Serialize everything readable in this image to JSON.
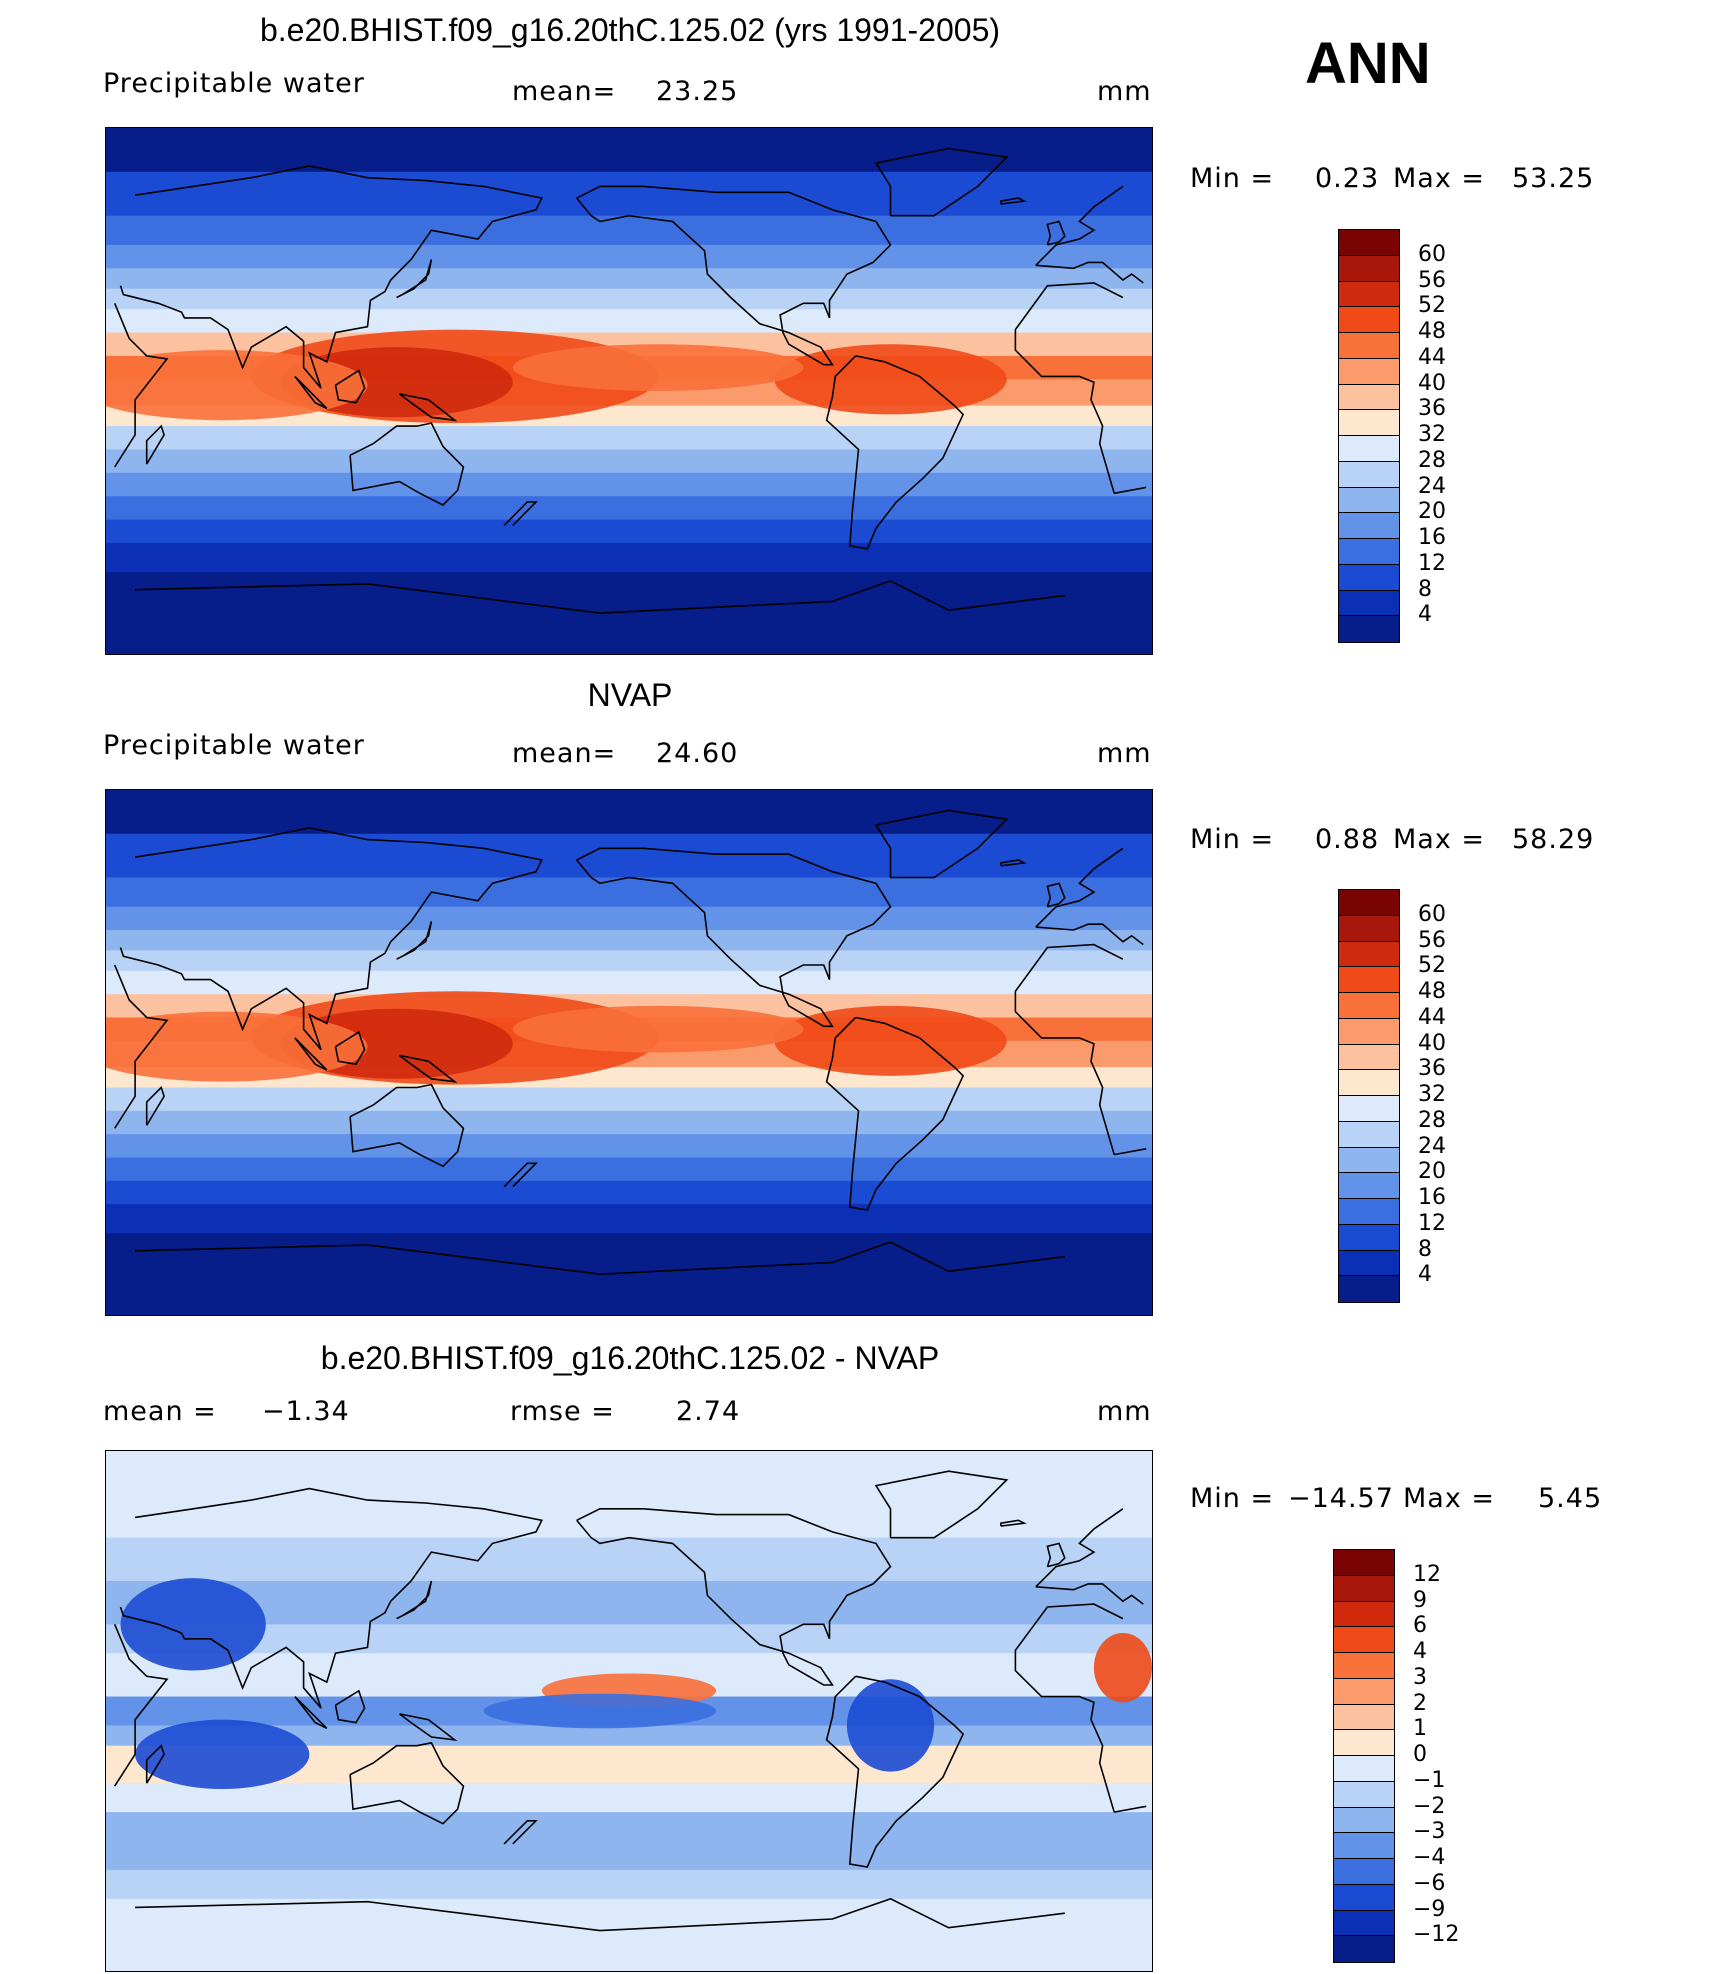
{
  "annotation": "ANN",
  "panels": [
    {
      "title": "b.e20.BHIST.f09_g16.20thC.125.02 (yrs 1991-2005)",
      "left_label": "Precipitable  water",
      "stat1_label": "mean=",
      "stat1_value": "23.25",
      "stat2_label": "",
      "stat2_value": "",
      "units": "mm",
      "minmax": {
        "min_label": "Min  =",
        "min": "0.23",
        "max_label": "Max  =",
        "max": "53.25"
      },
      "colorbar_labels": [
        "60",
        "56",
        "52",
        "48",
        "44",
        "40",
        "36",
        "32",
        "28",
        "24",
        "20",
        "16",
        "12",
        "8",
        "4"
      ],
      "colors": [
        "#7a0403",
        "#a8170b",
        "#cf2a0d",
        "#ef4a18",
        "#f8703a",
        "#fb9a6a",
        "#fcc2a0",
        "#fde7cf",
        "#dceafb",
        "#b9d3f6",
        "#8fb5ef",
        "#6293e8",
        "#3b6fe0",
        "#1c4bd3",
        "#0b2fb5",
        "#061d8a"
      ]
    },
    {
      "title": "NVAP",
      "left_label": "Precipitable  water",
      "stat1_label": "mean=",
      "stat1_value": "24.60",
      "stat2_label": "",
      "stat2_value": "",
      "units": "mm",
      "minmax": {
        "min_label": "Min  =",
        "min": "0.88",
        "max_label": "Max  =",
        "max": "58.29"
      },
      "colorbar_labels": [
        "60",
        "56",
        "52",
        "48",
        "44",
        "40",
        "36",
        "32",
        "28",
        "24",
        "20",
        "16",
        "12",
        "8",
        "4"
      ],
      "colors": [
        "#7a0403",
        "#a8170b",
        "#cf2a0d",
        "#ef4a18",
        "#f8703a",
        "#fb9a6a",
        "#fcc2a0",
        "#fde7cf",
        "#dceafb",
        "#b9d3f6",
        "#8fb5ef",
        "#6293e8",
        "#3b6fe0",
        "#1c4bd3",
        "#0b2fb5",
        "#061d8a"
      ]
    },
    {
      "title": "b.e20.BHIST.f09_g16.20thC.125.02 - NVAP",
      "left_label": "mean  =",
      "stat1_label": "−1.34",
      "stat1_value": "",
      "stat2_label": "rmse  =",
      "stat2_value": "2.74",
      "units": "mm",
      "minmax": {
        "min_label": "Min  =",
        "min": "−14.57",
        "max_label": "Max  =",
        "max": "5.45"
      },
      "colorbar_labels": [
        "12",
        "9",
        "6",
        "4",
        "3",
        "2",
        "1",
        "0",
        "−1",
        "−2",
        "−3",
        "−4",
        "−6",
        "−9",
        "−12"
      ],
      "colors": [
        "#7a0403",
        "#a8170b",
        "#cf2a0d",
        "#ef4a18",
        "#f8703a",
        "#fb9a6a",
        "#fcc2a0",
        "#fde7cf",
        "#dceafb",
        "#b9d3f6",
        "#8fb5ef",
        "#6293e8",
        "#3b6fe0",
        "#1c4bd3",
        "#0b2fb5",
        "#061d8a"
      ]
    }
  ],
  "chart_data": [
    {
      "type": "heatmap",
      "title": "b.e20.BHIST.f09_g16.20thC.125.02 (yrs 1991-2005)",
      "variable": "Precipitable water",
      "units": "mm",
      "mean": 23.25,
      "min": 0.23,
      "max": 53.25,
      "levels": [
        4,
        8,
        12,
        16,
        20,
        24,
        28,
        32,
        36,
        40,
        44,
        48,
        52,
        56,
        60
      ]
    },
    {
      "type": "heatmap",
      "title": "NVAP",
      "variable": "Precipitable water",
      "units": "mm",
      "mean": 24.6,
      "min": 0.88,
      "max": 58.29,
      "levels": [
        4,
        8,
        12,
        16,
        20,
        24,
        28,
        32,
        36,
        40,
        44,
        48,
        52,
        56,
        60
      ]
    },
    {
      "type": "heatmap",
      "title": "b.e20.BHIST.f09_g16.20thC.125.02 - NVAP",
      "units": "mm",
      "mean": -1.34,
      "rmse": 2.74,
      "min": -14.57,
      "max": 5.45,
      "levels": [
        -12,
        -9,
        -6,
        -4,
        -3,
        -2,
        -1,
        0,
        1,
        2,
        3,
        4,
        6,
        9,
        12
      ]
    }
  ]
}
